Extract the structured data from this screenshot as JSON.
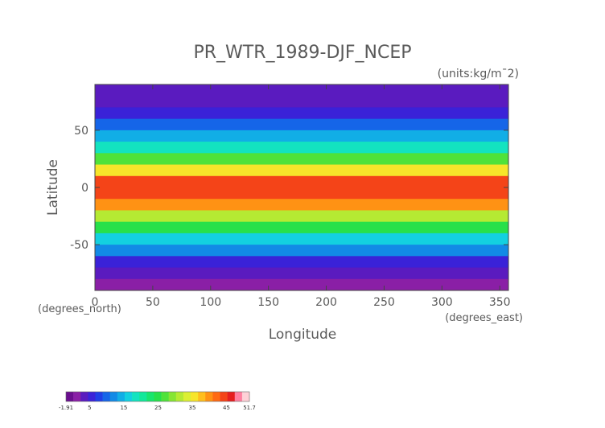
{
  "chart_data": {
    "type": "heatmap",
    "title": "PR_WTR_1989-DJF_NCEP",
    "units_label": "(units:kg/m¯2)",
    "xlabel": "Longitude",
    "ylabel": "Latitude",
    "x_unit_label": "(degrees_east)",
    "y_unit_label": "(degrees_north)",
    "xlim": [
      0,
      357.5
    ],
    "ylim": [
      -90,
      90
    ],
    "x_ticks": [
      0,
      50,
      100,
      150,
      200,
      250,
      300,
      350
    ],
    "y_ticks": [
      50,
      0,
      -50
    ],
    "colorbar": {
      "min": -1.91,
      "max": 51.7,
      "tick_labels": [
        "-1.91",
        "5",
        "15",
        "25",
        "35",
        "45",
        "51.7"
      ],
      "tick_values": [
        -1.91,
        5,
        15,
        25,
        35,
        45,
        51.7
      ],
      "colors": [
        "#6a0f8e",
        "#8a1fa6",
        "#5a1bbf",
        "#3a22d8",
        "#1f3ee6",
        "#1565e8",
        "#128ae6",
        "#11aee6",
        "#13d0e0",
        "#13e3c0",
        "#12e89a",
        "#18e56d",
        "#27e04a",
        "#4fe23a",
        "#86e534",
        "#b5ea33",
        "#dcef33",
        "#f7e52a",
        "#ffbe1d",
        "#ff9214",
        "#ff6a14",
        "#f44418",
        "#e51e1e",
        "#ff7fa0",
        "#ffd1d7"
      ]
    },
    "field_bands": [
      {
        "lat": 90,
        "value": 2
      },
      {
        "lat": 80,
        "value": 3
      },
      {
        "lat": 70,
        "value": 5
      },
      {
        "lat": 60,
        "value": 8
      },
      {
        "lat": 50,
        "value": 12
      },
      {
        "lat": 40,
        "value": 16
      },
      {
        "lat": 30,
        "value": 22
      },
      {
        "lat": 20,
        "value": 30
      },
      {
        "lat": 10,
        "value": 42
      },
      {
        "lat": 0,
        "value": 45
      },
      {
        "lat": -10,
        "value": 44
      },
      {
        "lat": -20,
        "value": 34
      },
      {
        "lat": -30,
        "value": 28
      },
      {
        "lat": -40,
        "value": 20
      },
      {
        "lat": -50,
        "value": 14
      },
      {
        "lat": -60,
        "value": 8
      },
      {
        "lat": -70,
        "value": 4
      },
      {
        "lat": -80,
        "value": 1
      },
      {
        "lat": -90,
        "value": 0
      }
    ]
  }
}
